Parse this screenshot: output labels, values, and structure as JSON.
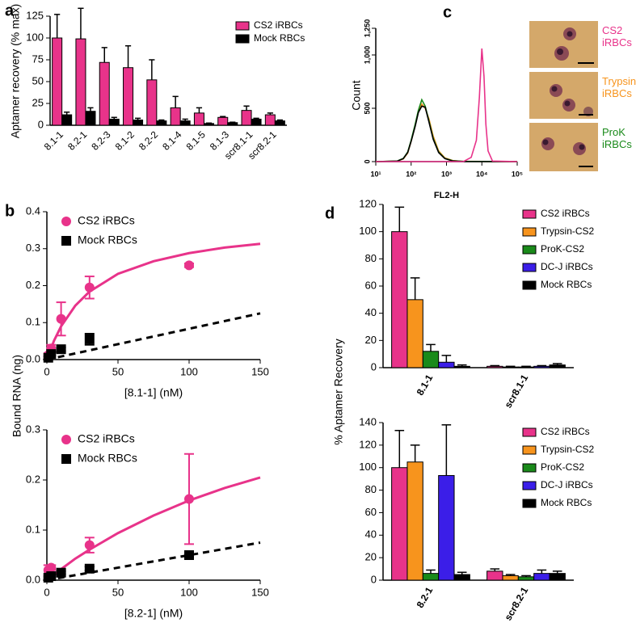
{
  "chart_data": [
    {
      "type": "bar",
      "label": "a",
      "ylabel": "Aptamer recovery (% max)",
      "categories": [
        "8.1-1",
        "8.2-1",
        "8.2-3",
        "8.1-2",
        "8.2-2",
        "8.1-4",
        "8.1-5",
        "8.1-3",
        "scr8.1-1",
        "scr8.2-1"
      ],
      "series": [
        {
          "name": "CS2 iRBCs",
          "color": "#e8338a",
          "values": [
            100,
            99,
            72,
            66,
            52,
            20,
            14,
            9,
            17,
            12
          ],
          "errors": [
            27,
            35,
            17,
            25,
            23,
            13,
            6,
            1,
            5,
            2
          ]
        },
        {
          "name": "Mock RBCs",
          "color": "#000000",
          "values": [
            12,
            16,
            7,
            6,
            5,
            5,
            2,
            3,
            7,
            5
          ],
          "errors": [
            3,
            4,
            2,
            2,
            1,
            2,
            0.5,
            0.5,
            1,
            1
          ]
        }
      ],
      "ylim": [
        0,
        125
      ],
      "yticks": [
        0,
        25,
        50,
        75,
        100,
        125
      ],
      "xtick_rotation": 45,
      "legend": "upper right"
    },
    {
      "type": "scatter",
      "label": "b",
      "ylabel": "Bound RNA (ng)",
      "xlabel": "[8.1-1] (nM)",
      "series": [
        {
          "name": "CS2 iRBCs",
          "color": "#e8338a",
          "marker": "circle",
          "x": [
            1,
            3,
            10,
            30,
            100
          ],
          "values": [
            0.012,
            0.03,
            0.11,
            0.195,
            0.255
          ],
          "errors": [
            0.005,
            0.01,
            0.045,
            0.03,
            0.005
          ],
          "fit": {
            "x": [
              0,
              5,
              10,
              20,
              30,
              50,
              75,
              100,
              125,
              150
            ],
            "values": [
              0,
              0.051,
              0.09,
              0.146,
              0.184,
              0.232,
              0.266,
              0.288,
              0.303,
              0.313
            ],
            "dashed": false
          }
        },
        {
          "name": "Mock RBCs",
          "color": "#000000",
          "marker": "square",
          "x": [
            1,
            3,
            10,
            30
          ],
          "values": [
            0.005,
            0.015,
            0.028,
            0.055
          ],
          "errors": [
            0.003,
            0.005,
            0.005,
            0.015
          ],
          "fit": {
            "x": [
              0,
              150
            ],
            "values": [
              0,
              0.125
            ],
            "dashed": true
          }
        }
      ],
      "xlim": [
        0,
        150
      ],
      "xticks": [
        0,
        50,
        100,
        150
      ],
      "ylim": [
        0,
        0.4
      ],
      "yticks": [
        {
          "value": 0,
          "label": "0.0"
        },
        0.1,
        0.2,
        0.3,
        0.4
      ],
      "legend": "upper left"
    },
    {
      "type": "scatter",
      "xlabel": "[8.2-1] (nM)",
      "series": [
        {
          "name": "CS2 iRBCs",
          "color": "#e8338a",
          "marker": "circle",
          "x": [
            1,
            3,
            30,
            100
          ],
          "values": [
            0.02,
            0.025,
            0.07,
            0.162
          ],
          "errors": [
            0.01,
            0.005,
            0.015,
            0.09
          ],
          "fit": {
            "x": [
              0,
              5,
              10,
              20,
              30,
              50,
              75,
              100,
              125,
              150
            ],
            "values": [
              0,
              0.011,
              0.022,
              0.043,
              0.061,
              0.094,
              0.129,
              0.159,
              0.184,
              0.205
            ],
            "dashed": false
          }
        },
        {
          "name": "Mock RBCs",
          "color": "#000000",
          "marker": "square",
          "x": [
            1,
            3,
            10,
            30,
            100
          ],
          "values": [
            0.005,
            0.008,
            0.015,
            0.023,
            0.05
          ],
          "errors": [
            0.002,
            0.002,
            0.003,
            0.004,
            0.008
          ],
          "fit": {
            "x": [
              0,
              150
            ],
            "values": [
              0,
              0.075
            ],
            "dashed": true
          }
        }
      ],
      "xlim": [
        0,
        150
      ],
      "xticks": [
        0,
        50,
        100,
        150
      ],
      "ylim": [
        0,
        0.3
      ],
      "yticks": [
        {
          "value": 0,
          "label": "0.0"
        },
        0.1,
        0.2,
        0.3
      ],
      "legend": "upper left"
    },
    {
      "type": "line",
      "label": "c",
      "ylabel": "Count",
      "xlabel": "FL2-H",
      "xscale": "log",
      "series": [
        {
          "color": "#f7941d",
          "x": [
            10,
            40,
            60,
            80,
            100,
            130,
            160,
            200,
            250,
            320,
            420,
            600,
            900,
            1500,
            3000,
            100000
          ],
          "values": [
            0,
            5,
            25,
            80,
            190,
            340,
            470,
            540,
            500,
            400,
            240,
            100,
            35,
            10,
            2,
            0
          ]
        },
        {
          "color": "#1a8a1a",
          "x": [
            10,
            40,
            60,
            80,
            100,
            130,
            160,
            200,
            250,
            320,
            420,
            600,
            900,
            1500,
            3000,
            100000
          ],
          "values": [
            0,
            5,
            30,
            90,
            200,
            350,
            480,
            580,
            520,
            380,
            220,
            90,
            30,
            8,
            2,
            0
          ]
        },
        {
          "color": "#000000",
          "x": [
            10,
            40,
            60,
            80,
            100,
            130,
            160,
            200,
            250,
            320,
            420,
            600,
            900,
            1500,
            3000,
            100000
          ],
          "values": [
            0,
            4,
            28,
            85,
            190,
            330,
            460,
            520,
            510,
            370,
            210,
            85,
            28,
            6,
            1,
            0
          ]
        },
        {
          "color": "#e8338a",
          "x": [
            10,
            3000,
            5000,
            7000,
            8500,
            10000,
            11500,
            13000,
            15000,
            20000,
            100000
          ],
          "values": [
            0,
            0,
            40,
            200,
            600,
            1060,
            800,
            350,
            100,
            5,
            0
          ]
        }
      ],
      "xlim": [
        10,
        100000
      ],
      "xticks": [
        {
          "value": 10,
          "label": "10¹"
        },
        {
          "value": 100,
          "label": "10²"
        },
        {
          "value": 1000,
          "label": "10³"
        },
        {
          "value": 10000,
          "label": "10⁴"
        },
        {
          "value": 100000,
          "label": "10⁵"
        }
      ],
      "ylim": [
        0,
        1250
      ],
      "yticks": [
        0,
        500,
        {
          "value": 1000,
          "label": "1,000"
        },
        {
          "value": 1250,
          "label": "1,250"
        }
      ],
      "ytick_rotation": 90,
      "image_labels": [
        {
          "text": "CS2 iRBCs",
          "color": "#e8338a"
        },
        {
          "text": "Trypsin iRBCs",
          "color": "#f7941d"
        },
        {
          "text": "ProK iRBCs",
          "color": "#1a8a1a"
        }
      ]
    },
    {
      "type": "bar",
      "label": "d",
      "ylabel": "% Aptamer Recovery",
      "categories": [
        "8.1-1",
        "scr8.1-1"
      ],
      "series": [
        {
          "name": "CS2 iRBCs",
          "color": "#e8338a",
          "values": [
            100,
            1
          ],
          "errors": [
            18,
            0.5
          ]
        },
        {
          "name": "Trypsin-CS2",
          "color": "#f7941d",
          "values": [
            50,
            0.5
          ],
          "errors": [
            16,
            0.5
          ]
        },
        {
          "name": "ProK-CS2",
          "color": "#1a8a1a",
          "values": [
            12,
            0.5
          ],
          "errors": [
            5,
            0.5
          ]
        },
        {
          "name": "DC-J iRBCs",
          "color": "#3b1ee8",
          "values": [
            4,
            1
          ],
          "errors": [
            5,
            0.5
          ]
        },
        {
          "name": "Mock RBCs",
          "color": "#000000",
          "values": [
            1,
            2
          ],
          "errors": [
            1,
            1
          ]
        }
      ],
      "ylim": [
        0,
        120
      ],
      "yticks": [
        0,
        20,
        40,
        60,
        80,
        100,
        120
      ],
      "xtick_rotation": 60,
      "legend": "upper right"
    },
    {
      "type": "bar",
      "categories": [
        "8.2-1",
        "scr8.2-1"
      ],
      "series": [
        {
          "name": "CS2 iRBCs",
          "color": "#e8338a",
          "values": [
            100,
            8
          ],
          "errors": [
            33,
            2
          ]
        },
        {
          "name": "Trypsin-CS2",
          "color": "#f7941d",
          "values": [
            105,
            4
          ],
          "errors": [
            15,
            1
          ]
        },
        {
          "name": "ProK-CS2",
          "color": "#1a8a1a",
          "values": [
            6,
            3
          ],
          "errors": [
            3,
            1
          ]
        },
        {
          "name": "DC-J iRBCs",
          "color": "#3b1ee8",
          "values": [
            93,
            6
          ],
          "errors": [
            45,
            3
          ]
        },
        {
          "name": "Mock RBCs",
          "color": "#000000",
          "values": [
            5,
            6
          ],
          "errors": [
            2,
            2
          ]
        }
      ],
      "ylim": [
        0,
        140
      ],
      "yticks": [
        0,
        20,
        40,
        60,
        80,
        100,
        120,
        140
      ],
      "xtick_rotation": 60,
      "legend": "upper right"
    }
  ]
}
